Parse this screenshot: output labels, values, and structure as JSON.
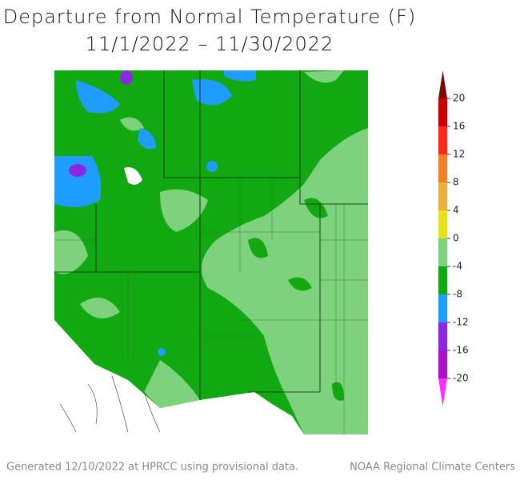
{
  "title": "Departure from Normal Temperature (F)",
  "subtitle": "11/1/2022 – 11/30/2022",
  "footer_left": "Generated 12/10/2022 at HPRCC using provisional data.",
  "footer_right": "NOAA Regional Climate Centers",
  "legend": {
    "lim": [
      -20,
      20
    ],
    "ticks": [
      20,
      16,
      12,
      8,
      4,
      0,
      -4,
      -8,
      -12,
      -16,
      -20
    ],
    "colors": [
      "#7a0a0a",
      "#c80000",
      "#ff2a1a",
      "#f0802a",
      "#e8b040",
      "#e8e020",
      "#7ed27e",
      "#12a812",
      "#1e9cff",
      "#8a2ae0",
      "#a812c8",
      "#ff30ff"
    ]
  }
}
